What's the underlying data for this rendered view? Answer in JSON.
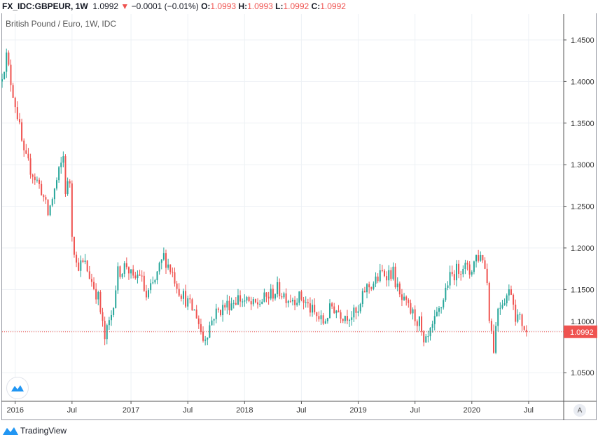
{
  "header": {
    "symbol": "FX_IDC:GBPEUR, 1W",
    "last": "1.0992",
    "change": "−0.0001 (−0.01%)",
    "o_label": "O:",
    "o": "1.0993",
    "h_label": "H:",
    "h": "1.0993",
    "l_label": "L:",
    "l": "1.0992",
    "c_label": "C:",
    "c": "1.0992"
  },
  "legend": "British Pound / Euro, 1W, IDC",
  "footer": "TradingView",
  "auto_label": "A",
  "colors": {
    "up": "#26a69a",
    "down": "#ef5350",
    "grid": "#edf1f5"
  },
  "chart_data": {
    "type": "candlestick",
    "title": "British Pound / Euro, 1W, IDC",
    "ylim": [
      1.03,
      1.47
    ],
    "y_ticks": [
      "1.0500",
      "1.1000",
      "1.1500",
      "1.2000",
      "1.2500",
      "1.3000",
      "1.3500",
      "1.4000",
      "1.4500"
    ],
    "x_unit": "weeks since 2015-11-23",
    "x_ticks": [
      {
        "label": "2016",
        "week": 6
      },
      {
        "label": "Jul",
        "week": 32
      },
      {
        "label": "2017",
        "week": 59
      },
      {
        "label": "Jul",
        "week": 85
      },
      {
        "label": "2018",
        "week": 111
      },
      {
        "label": "Jul",
        "week": 137
      },
      {
        "label": "2019",
        "week": 163
      },
      {
        "label": "Jul",
        "week": 189
      },
      {
        "label": "2020",
        "week": 215
      },
      {
        "label": "Jul",
        "week": 241
      }
    ],
    "last_price": "1.0992",
    "close_keypoints": [
      [
        0,
        1.41
      ],
      [
        2,
        1.43
      ],
      [
        4,
        1.4
      ],
      [
        7,
        1.36
      ],
      [
        10,
        1.31
      ],
      [
        14,
        1.29
      ],
      [
        18,
        1.27
      ],
      [
        21,
        1.24
      ],
      [
        25,
        1.28
      ],
      [
        28,
        1.31
      ],
      [
        29,
        1.27
      ],
      [
        31,
        1.28
      ],
      [
        32,
        1.22
      ],
      [
        34,
        1.18
      ],
      [
        38,
        1.18
      ],
      [
        41,
        1.16
      ],
      [
        44,
        1.14
      ],
      [
        47,
        1.09
      ],
      [
        50,
        1.12
      ],
      [
        53,
        1.17
      ],
      [
        57,
        1.18
      ],
      [
        60,
        1.16
      ],
      [
        63,
        1.17
      ],
      [
        66,
        1.14
      ],
      [
        70,
        1.16
      ],
      [
        74,
        1.19
      ],
      [
        78,
        1.17
      ],
      [
        81,
        1.15
      ],
      [
        86,
        1.13
      ],
      [
        89,
        1.12
      ],
      [
        92,
        1.09
      ],
      [
        94,
        1.1
      ],
      [
        97,
        1.12
      ],
      [
        102,
        1.13
      ],
      [
        108,
        1.14
      ],
      [
        115,
        1.13
      ],
      [
        121,
        1.14
      ],
      [
        126,
        1.15
      ],
      [
        131,
        1.14
      ],
      [
        137,
        1.14
      ],
      [
        143,
        1.12
      ],
      [
        147,
        1.11
      ],
      [
        151,
        1.13
      ],
      [
        156,
        1.12
      ],
      [
        159,
        1.12
      ],
      [
        163,
        1.12
      ],
      [
        166,
        1.15
      ],
      [
        171,
        1.16
      ],
      [
        174,
        1.17
      ],
      [
        179,
        1.17
      ],
      [
        182,
        1.14
      ],
      [
        185,
        1.13
      ],
      [
        188,
        1.12
      ],
      [
        191,
        1.11
      ],
      [
        193,
        1.08
      ],
      [
        195,
        1.09
      ],
      [
        198,
        1.11
      ],
      [
        201,
        1.13
      ],
      [
        204,
        1.16
      ],
      [
        207,
        1.17
      ],
      [
        211,
        1.18
      ],
      [
        214,
        1.17
      ],
      [
        217,
        1.19
      ],
      [
        220,
        1.19
      ],
      [
        222,
        1.16
      ],
      [
        223,
        1.12
      ],
      [
        225,
        1.08
      ],
      [
        227,
        1.13
      ],
      [
        230,
        1.14
      ],
      [
        233,
        1.15
      ],
      [
        235,
        1.12
      ],
      [
        238,
        1.11
      ],
      [
        240,
        1.0992
      ]
    ]
  }
}
